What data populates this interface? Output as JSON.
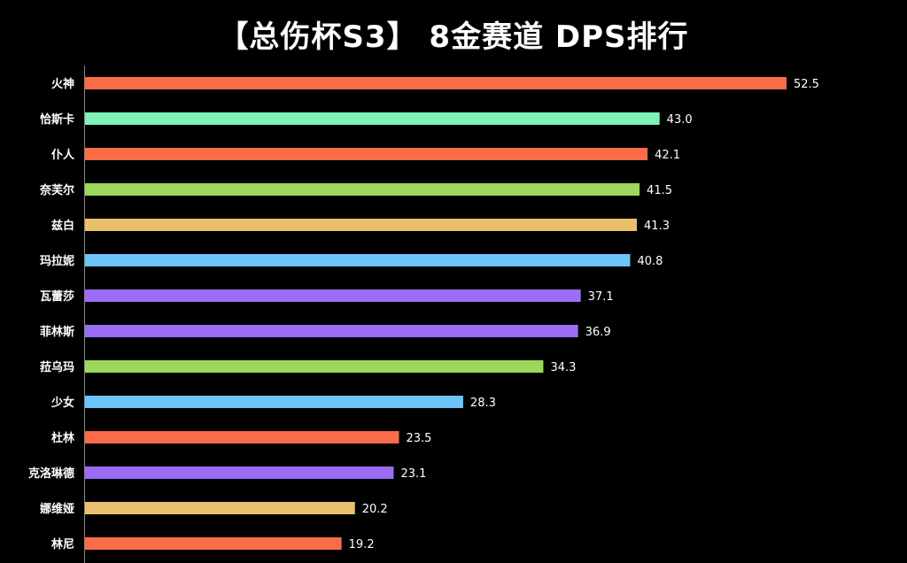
{
  "chart_data": {
    "type": "bar",
    "orientation": "horizontal",
    "title": "【总伤杯S3】 8金赛道 DPS排行",
    "xlabel": "",
    "ylabel": "",
    "xlim": [
      0,
      55
    ],
    "grid": false,
    "categories": [
      "火神",
      "恰斯卡",
      "仆人",
      "奈芙尔",
      "兹白",
      "玛拉妮",
      "瓦蕾莎",
      "菲林斯",
      "菈乌玛",
      "少女",
      "杜林",
      "克洛琳德",
      "娜维娅",
      "林尼"
    ],
    "values": [
      52.5,
      43.0,
      42.1,
      41.5,
      41.3,
      40.8,
      37.1,
      36.9,
      34.3,
      28.3,
      23.5,
      23.1,
      20.2,
      19.2
    ],
    "value_labels": [
      "52.5",
      "43.0",
      "42.1",
      "41.5",
      "41.3",
      "40.8",
      "37.1",
      "36.9",
      "34.3",
      "28.3",
      "23.5",
      "23.1",
      "20.2",
      "19.2"
    ],
    "colors": [
      "#f96c47",
      "#7ff2b8",
      "#f96c47",
      "#9bd85c",
      "#ebc06c",
      "#6cc4f8",
      "#9b6cf4",
      "#9b6cf4",
      "#9bd85c",
      "#6cc4f8",
      "#f96c47",
      "#9b6cf4",
      "#ebc06c",
      "#f96c47"
    ]
  }
}
